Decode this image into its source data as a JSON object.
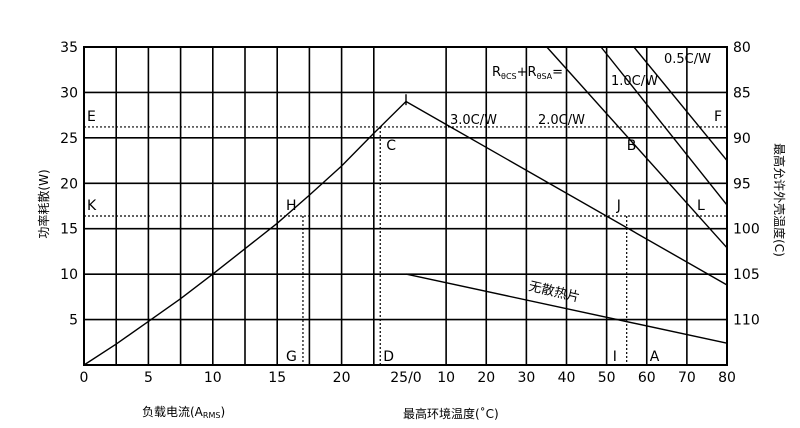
{
  "chart_data": {
    "type": "line",
    "title": "",
    "left_axis": {
      "label": "功率耗散(W)",
      "range": [
        0,
        35
      ],
      "ticks": [
        "5",
        "10",
        "15",
        "20",
        "25",
        "30",
        "35"
      ]
    },
    "right_axis": {
      "label": "最高允许外壳温度(C)",
      "ticks": [
        "110",
        "105",
        "100",
        "95",
        "90",
        "85",
        "80"
      ]
    },
    "x_axis_left": {
      "label_main": "负载电流(A",
      "label_sub": "RMS",
      "label_end": ")",
      "range": [
        0,
        25
      ],
      "ticks": [
        "0",
        "5",
        "10",
        "15",
        "20",
        "25/0"
      ]
    },
    "x_axis_right": {
      "label": "最高环境温度(˚C)",
      "range": [
        0,
        80
      ],
      "ticks": [
        "10",
        "20",
        "30",
        "40",
        "50",
        "60",
        "70",
        "80"
      ]
    },
    "power_curve": {
      "x_current": [
        0,
        2.5,
        5,
        7.5,
        10,
        12.5,
        15,
        17.5,
        20,
        22.5,
        25
      ],
      "y_watts": [
        0,
        2.3,
        4.8,
        7.3,
        10.0,
        12.8,
        15.6,
        18.7,
        21.9,
        25.5,
        29.0
      ]
    },
    "thermal_lines": [
      {
        "name": "0.5C/W",
        "x_temp": [
          56.8,
          80
        ],
        "y_watts": [
          35,
          22.5
        ]
      },
      {
        "name": "1.0C/W",
        "x_temp": [
          48.6,
          80
        ],
        "y_watts": [
          35,
          17.6
        ]
      },
      {
        "name": "2.0C/W",
        "x_temp": [
          35.1,
          80
        ],
        "y_watts": [
          35,
          12.9
        ]
      },
      {
        "name": "3.0C/W",
        "x_temp": [
          0,
          80
        ],
        "y_watts": [
          29,
          8.8
        ]
      },
      {
        "name": "无散热片",
        "x_temp": [
          0,
          80
        ],
        "y_watts": [
          10,
          2.4
        ]
      }
    ],
    "rth_legend": {
      "r1": "R",
      "s1": "θCS",
      "plus": "+",
      "r2": "R",
      "s2": "θSA",
      "eq": "="
    },
    "reference_points": {
      "A": "A",
      "B": "B",
      "C": "C",
      "D": "D",
      "E": "E",
      "F": "F",
      "G": "G",
      "H": "H",
      "I": "I",
      "J": "J",
      "K": "K",
      "L": "L"
    },
    "reference_values": {
      "EF_watts": 26.2,
      "KL_watts": 16.4,
      "CD_current": 23.0,
      "GH_current": 17.0,
      "A_temp": 60.0,
      "I_temp": 55.0
    },
    "grid": true
  }
}
